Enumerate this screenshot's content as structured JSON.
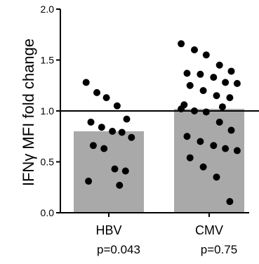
{
  "chart_data": {
    "type": "bar",
    "ylabel": "IFNγ MFI fold change",
    "xlabel": "",
    "ylim": [
      0.0,
      2.0
    ],
    "yticks": [
      "0.0",
      "0.5",
      "1.0",
      "1.5",
      "2.0"
    ],
    "reference_line": 1.0,
    "bar_color": "#a9a9a9",
    "dot_color": "#000000",
    "categories": [
      "HBV",
      "CMV"
    ],
    "annotations": [
      "p=0.043",
      "p=0.75"
    ],
    "values": [
      0.8,
      1.02
    ],
    "points": [
      [
        1.28,
        1.18,
        1.13,
        1.05,
        0.92,
        0.89,
        0.84,
        0.8,
        0.79,
        0.74,
        0.66,
        0.63,
        0.43,
        0.41,
        0.31,
        0.27
      ],
      [
        1.66,
        1.6,
        1.55,
        1.45,
        1.39,
        1.37,
        1.36,
        1.33,
        1.28,
        1.27,
        1.25,
        1.2,
        1.15,
        1.13,
        1.06,
        1.04,
        1.02,
        1.0,
        0.99,
        0.89,
        0.81,
        0.75,
        0.7,
        0.66,
        0.63,
        0.61,
        0.54,
        0.45,
        0.35,
        0.11
      ]
    ]
  }
}
